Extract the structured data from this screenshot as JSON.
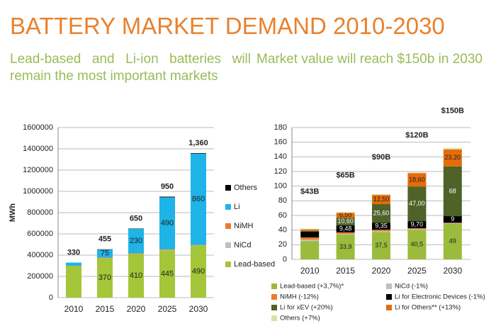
{
  "header": {
    "title": "BATTERY MARKET DEMAND 2010-2030",
    "left_text": "Lead-based and Li-ion batteries will remain the most important markets",
    "right_text": "Market value will reach $150b in 2030"
  },
  "chart_data": [
    {
      "type": "stacked_bar",
      "ylabel": "MWh",
      "categories": [
        "2010",
        "2015",
        "2020",
        "2025",
        "2030"
      ],
      "ylim": [
        0,
        1600000
      ],
      "yticks": [
        0,
        200000,
        400000,
        600000,
        800000,
        1000000,
        1200000,
        1400000,
        1600000
      ],
      "grid": true,
      "series": [
        {
          "name": "Lead-based",
          "color": "#a4c639",
          "values": [
            300000,
            370000,
            410000,
            445000,
            490000
          ],
          "value_labels": [
            null,
            "370",
            "410",
            "445",
            "490"
          ]
        },
        {
          "name": "NiCd",
          "color": "#bfbfbf",
          "values": [
            0,
            2000,
            2000,
            3000,
            2000
          ]
        },
        {
          "name": "NiMH",
          "color": "#e87d2c",
          "values": [
            0,
            5000,
            5000,
            6000,
            3000
          ]
        },
        {
          "name": "Li",
          "color": "#1eb4e8",
          "values": [
            30000,
            75000,
            230000,
            490000,
            860000
          ],
          "value_labels": [
            null,
            "75",
            "230",
            "490",
            "860"
          ]
        },
        {
          "name": "Others",
          "color": "#000000",
          "values": [
            0,
            3000,
            3000,
            6000,
            5000
          ]
        }
      ],
      "annotations": [
        "330",
        "455",
        "650",
        "950",
        "1,360"
      ]
    },
    {
      "type": "stacked_bar",
      "categories": [
        "2010",
        "2015",
        "2020",
        "2025",
        "2030"
      ],
      "ylim": [
        0,
        180
      ],
      "yticks": [
        0,
        20,
        40,
        60,
        80,
        100,
        120,
        140,
        160,
        180
      ],
      "grid": true,
      "series": [
        {
          "name": "Lead-based (+3,7%)*",
          "color": "#9bbb3c",
          "values": [
            25,
            33.9,
            37.5,
            40.5,
            49
          ],
          "value_labels": [
            null,
            "33,9",
            "37,5",
            "40,5",
            "49"
          ]
        },
        {
          "name": "NiCd (-1%)",
          "color": "#bfbfbf",
          "values": [
            2,
            1,
            1,
            1,
            0.5
          ]
        },
        {
          "name": "NiMH (-12%)",
          "color": "#e87d2c",
          "values": [
            3,
            2,
            2,
            1,
            0.5
          ]
        },
        {
          "name": "Li for Electronic Devices (-1%)",
          "color": "#000000",
          "values": [
            8,
            9.48,
            9.35,
            9.7,
            9
          ],
          "value_labels": [
            null,
            "9,48",
            "9,35",
            "9,70",
            "9"
          ]
        },
        {
          "name": "Li for xEV (+20%)",
          "color": "#4f6228",
          "values": [
            1,
            10.6,
            25.6,
            47,
            68
          ],
          "value_labels": [
            null,
            "10,60",
            "25,60",
            "47,00",
            "68"
          ]
        },
        {
          "name": "Li for Others** (+13%)",
          "color": "#e46c0a",
          "values": [
            2,
            6.5,
            12.5,
            18.6,
            23.2
          ],
          "value_labels": [
            null,
            "6,50",
            "12,50",
            "18,60",
            "23,20"
          ]
        },
        {
          "name": "Others (+7%)",
          "color": "#d7e4a0",
          "values": [
            1,
            1,
            1,
            1,
            2
          ]
        }
      ],
      "annotations": [
        "$43B",
        "$65B",
        "$90B",
        "$120B",
        "$150B"
      ]
    }
  ]
}
